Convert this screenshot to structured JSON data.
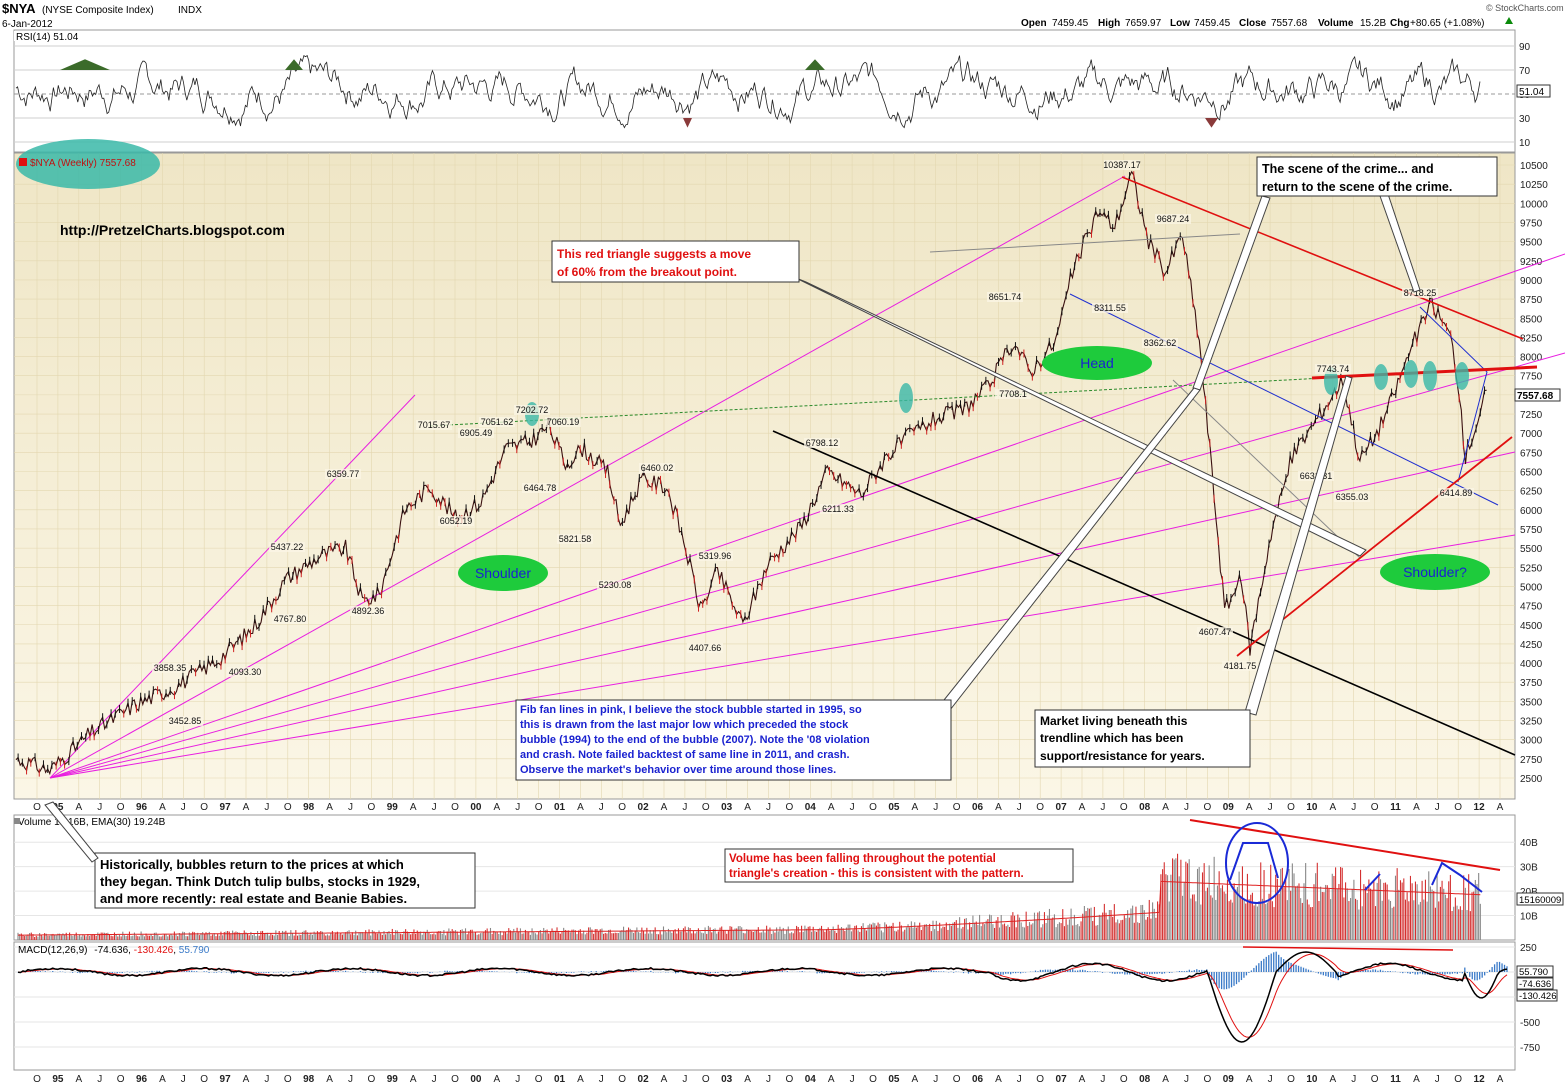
{
  "header": {
    "symbol": "$NYA",
    "name": "(NYSE Composite Index)",
    "exchange": "INDX",
    "date": "6-Jan-2012",
    "open_label": "Open",
    "open": "7459.45",
    "high_label": "High",
    "high": "7659.97",
    "low_label": "Low",
    "low": "7459.45",
    "close_label": "Close",
    "close": "7557.68",
    "volume_label": "Volume",
    "volume": "15.2B",
    "chg_label": "Chg",
    "chg": "+80.65 (+1.08%)",
    "provider": "© StockCharts.com",
    "up_arrow_color": "#0a8a0a"
  },
  "rsi_panel": {
    "label": "RSI(14) 51.04",
    "last": "51.04",
    "ticks": [
      "90",
      "70",
      "50",
      "30",
      "10"
    ],
    "colors": {
      "line": "#222222",
      "overbought_fill": "#3b6b2a",
      "oversold_fill": "#8a3a3a"
    }
  },
  "price_panel": {
    "legend": "$NYA (Weekly) 7557.68",
    "website": "http://PretzelCharts.blogspot.com",
    "last_price_tag": "7557.68",
    "y_ticks": [
      "10500",
      "10250",
      "10000",
      "9750",
      "9500",
      "9250",
      "9000",
      "8750",
      "8500",
      "8250",
      "8000",
      "7750",
      "7500",
      "7250",
      "7000",
      "6750",
      "6500",
      "6250",
      "6000",
      "5750",
      "5500",
      "5250",
      "5000",
      "4750",
      "4500",
      "4250",
      "4000",
      "3750",
      "3500",
      "3250",
      "3000",
      "2750",
      "2500"
    ],
    "swing_labels": [
      "10387.17",
      "9687.24",
      "8311.55",
      "8362.62",
      "8651.74",
      "7708.1",
      "7743.74",
      "8718.25",
      "6631.31",
      "6355.03",
      "6414.89",
      "4607.47",
      "4181.75",
      "7202.72",
      "7051.62",
      "7060.19",
      "7015.67",
      "6905.49",
      "6464.78",
      "6359.77",
      "6052.19",
      "6460.02",
      "5821.58",
      "5230.08",
      "5437.22",
      "4767.80",
      "4892.36",
      "6798.12",
      "6211.33",
      "5319.96",
      "4407.66",
      "3858.35",
      "3452.85",
      "4093.30"
    ],
    "pattern_labels": {
      "left_shoulder": "Shoulder",
      "head": "Head",
      "right_shoulder": "Shoulder?"
    },
    "annotations": {
      "red_triangle": [
        "This red triangle suggests a move",
        "of 60% from the breakout point."
      ],
      "scene_of_crime": [
        "The scene of the crime... and",
        "return to the scene of the crime."
      ],
      "fib_fan": [
        "Fib fan lines in pink, I believe the stock bubble started in 1995, so",
        "this is drawn from the last major low which preceded the stock",
        "bubble (1994) to the end of the bubble (2007).  Note the '08 violation",
        "and crash.  Note failed backtest of same line in 2011, and crash.",
        "Observe the market's behavior over time around those lines."
      ],
      "trendline": [
        "Market living beneath this",
        "trendline which has been",
        "support/resistance for years."
      ]
    },
    "colors": {
      "bg_top": "#efe6c6",
      "bg_bottom": "#fbf6e6",
      "fib_fan": "#e81ee0",
      "triangle": "#e01010",
      "blue_lines": "#2030d0",
      "oval_green": "#1ecb3c",
      "oval_teal": "#3ab8a8"
    }
  },
  "x_axis": {
    "labels": [
      "O",
      "95",
      "A",
      "J",
      "O",
      "96",
      "A",
      "J",
      "O",
      "97",
      "A",
      "J",
      "O",
      "98",
      "A",
      "J",
      "O",
      "99",
      "A",
      "J",
      "O",
      "00",
      "A",
      "J",
      "O",
      "01",
      "A",
      "J",
      "O",
      "02",
      "A",
      "J",
      "O",
      "03",
      "A",
      "J",
      "O",
      "04",
      "A",
      "J",
      "O",
      "05",
      "A",
      "J",
      "O",
      "06",
      "A",
      "J",
      "O",
      "07",
      "A",
      "J",
      "O",
      "08",
      "A",
      "J",
      "O",
      "09",
      "A",
      "J",
      "O",
      "10",
      "A",
      "J",
      "O",
      "11",
      "A",
      "J",
      "O",
      "12",
      "A"
    ],
    "bold": [
      "95",
      "96",
      "97",
      "98",
      "99",
      "00",
      "01",
      "02",
      "03",
      "04",
      "05",
      "06",
      "07",
      "08",
      "09",
      "10",
      "11",
      "12"
    ]
  },
  "volume_panel": {
    "label": "Volume 15.16B, EMA(30) 19.24B",
    "ticks": [
      "40B",
      "30B",
      "20B",
      "10B"
    ],
    "last_tag": "15160009",
    "note_bubbles": [
      "Historically, bubbles return to the prices at which",
      "they began.  Think Dutch tulip bulbs, stocks in 1929,",
      "and more recently: real estate and Beanie Babies."
    ],
    "note_volume": [
      "Volume has been falling throughout the potential",
      "triangle's creation - this is consistent with the pattern."
    ],
    "colors": {
      "up_bar": "#888888",
      "down_bar": "#d43030",
      "ema": "#e02020",
      "trend": "#e01010",
      "marks": "#1a2ad6"
    }
  },
  "macd_panel": {
    "label_prefix": "MACD(12,26,9)",
    "macd": "-74.636",
    "signal": "-130.426",
    "hist": "55.790",
    "ticks": [
      "250",
      "0",
      "-250",
      "-500",
      "-750"
    ],
    "tags": [
      "55.790",
      "-74.636",
      "-130.426"
    ],
    "colors": {
      "macd": "#000000",
      "signal": "#e01010",
      "hist": "#3a7ac8",
      "trend": "#e01010"
    }
  }
}
